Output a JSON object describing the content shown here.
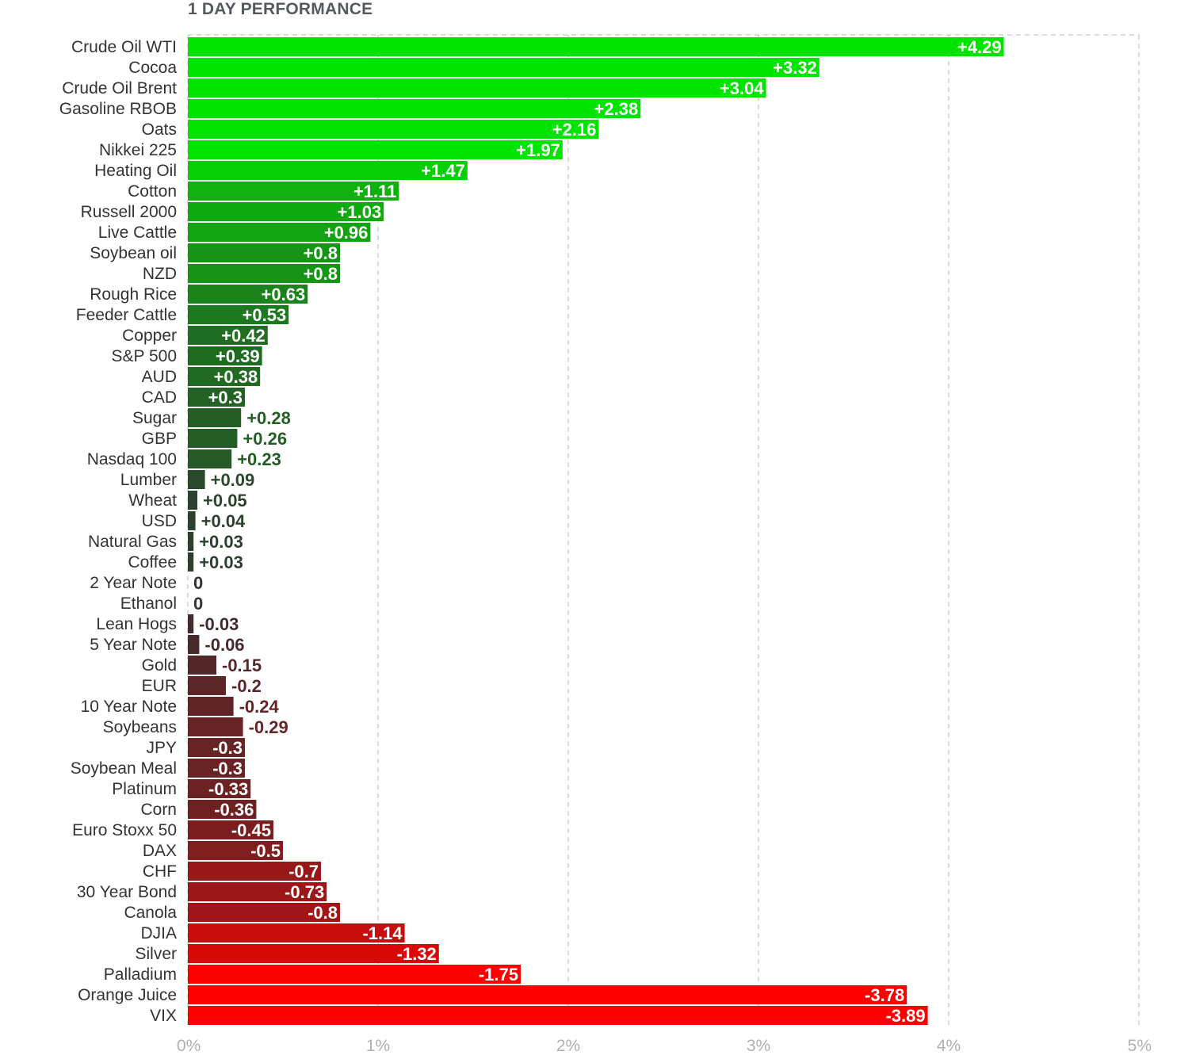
{
  "chart_data": {
    "type": "bar",
    "orientation": "horizontal",
    "title": "1 DAY PERFORMANCE",
    "xlim": [
      0,
      5
    ],
    "x_ticks": [
      "0%",
      "1%",
      "2%",
      "3%",
      "4%",
      "5%"
    ],
    "grid": true,
    "value_scale": "absolute",
    "categories": [
      "Crude Oil WTI",
      "Cocoa",
      "Crude Oil Brent",
      "Gasoline RBOB",
      "Oats",
      "Nikkei 225",
      "Heating Oil",
      "Cotton",
      "Russell 2000",
      "Live Cattle",
      "Soybean oil",
      "NZD",
      "Rough Rice",
      "Feeder Cattle",
      "Copper",
      "S&P 500",
      "AUD",
      "CAD",
      "Sugar",
      "GBP",
      "Nasdaq 100",
      "Lumber",
      "Wheat",
      "USD",
      "Natural Gas",
      "Coffee",
      "2 Year Note",
      "Ethanol",
      "Lean Hogs",
      "5 Year Note",
      "Gold",
      "EUR",
      "10 Year Note",
      "Soybeans",
      "JPY",
      "Soybean Meal",
      "Platinum",
      "Corn",
      "Euro Stoxx 50",
      "DAX",
      "CHF",
      "30 Year Bond",
      "Canola",
      "DJIA",
      "Silver",
      "Palladium",
      "Orange Juice",
      "VIX"
    ],
    "values": [
      4.29,
      3.32,
      3.04,
      2.38,
      2.16,
      1.97,
      1.47,
      1.11,
      1.03,
      0.96,
      0.8,
      0.8,
      0.63,
      0.53,
      0.42,
      0.39,
      0.38,
      0.3,
      0.28,
      0.26,
      0.23,
      0.09,
      0.05,
      0.04,
      0.03,
      0.03,
      0,
      0,
      -0.03,
      -0.06,
      -0.15,
      -0.2,
      -0.24,
      -0.29,
      -0.3,
      -0.3,
      -0.33,
      -0.36,
      -0.45,
      -0.5,
      -0.7,
      -0.73,
      -0.8,
      -1.14,
      -1.32,
      -1.75,
      -3.78,
      -3.89
    ],
    "value_labels": [
      "+4.29",
      "+3.32",
      "+3.04",
      "+2.38",
      "+2.16",
      "+1.97",
      "+1.47",
      "+1.11",
      "+1.03",
      "+0.96",
      "+0.8",
      "+0.8",
      "+0.63",
      "+0.53",
      "+0.42",
      "+0.39",
      "+0.38",
      "+0.3",
      "+0.28",
      "+0.26",
      "+0.23",
      "+0.09",
      "+0.05",
      "+0.04",
      "+0.03",
      "+0.03",
      "0",
      "0",
      "-0.03",
      "-0.06",
      "-0.15",
      "-0.2",
      "-0.24",
      "-0.29",
      "-0.3",
      "-0.3",
      "-0.33",
      "-0.36",
      "-0.45",
      "-0.5",
      "-0.7",
      "-0.73",
      "-0.8",
      "-1.14",
      "-1.32",
      "-1.75",
      "-3.78",
      "-3.89"
    ],
    "colors": {
      "gain_strong": "#00e400",
      "gain_weak": "#2d3b2f",
      "loss_strong": "#ff0000",
      "loss_weak": "#3b2d2f",
      "neutral": "#cccccc",
      "label_inside": "#ffffff"
    }
  }
}
